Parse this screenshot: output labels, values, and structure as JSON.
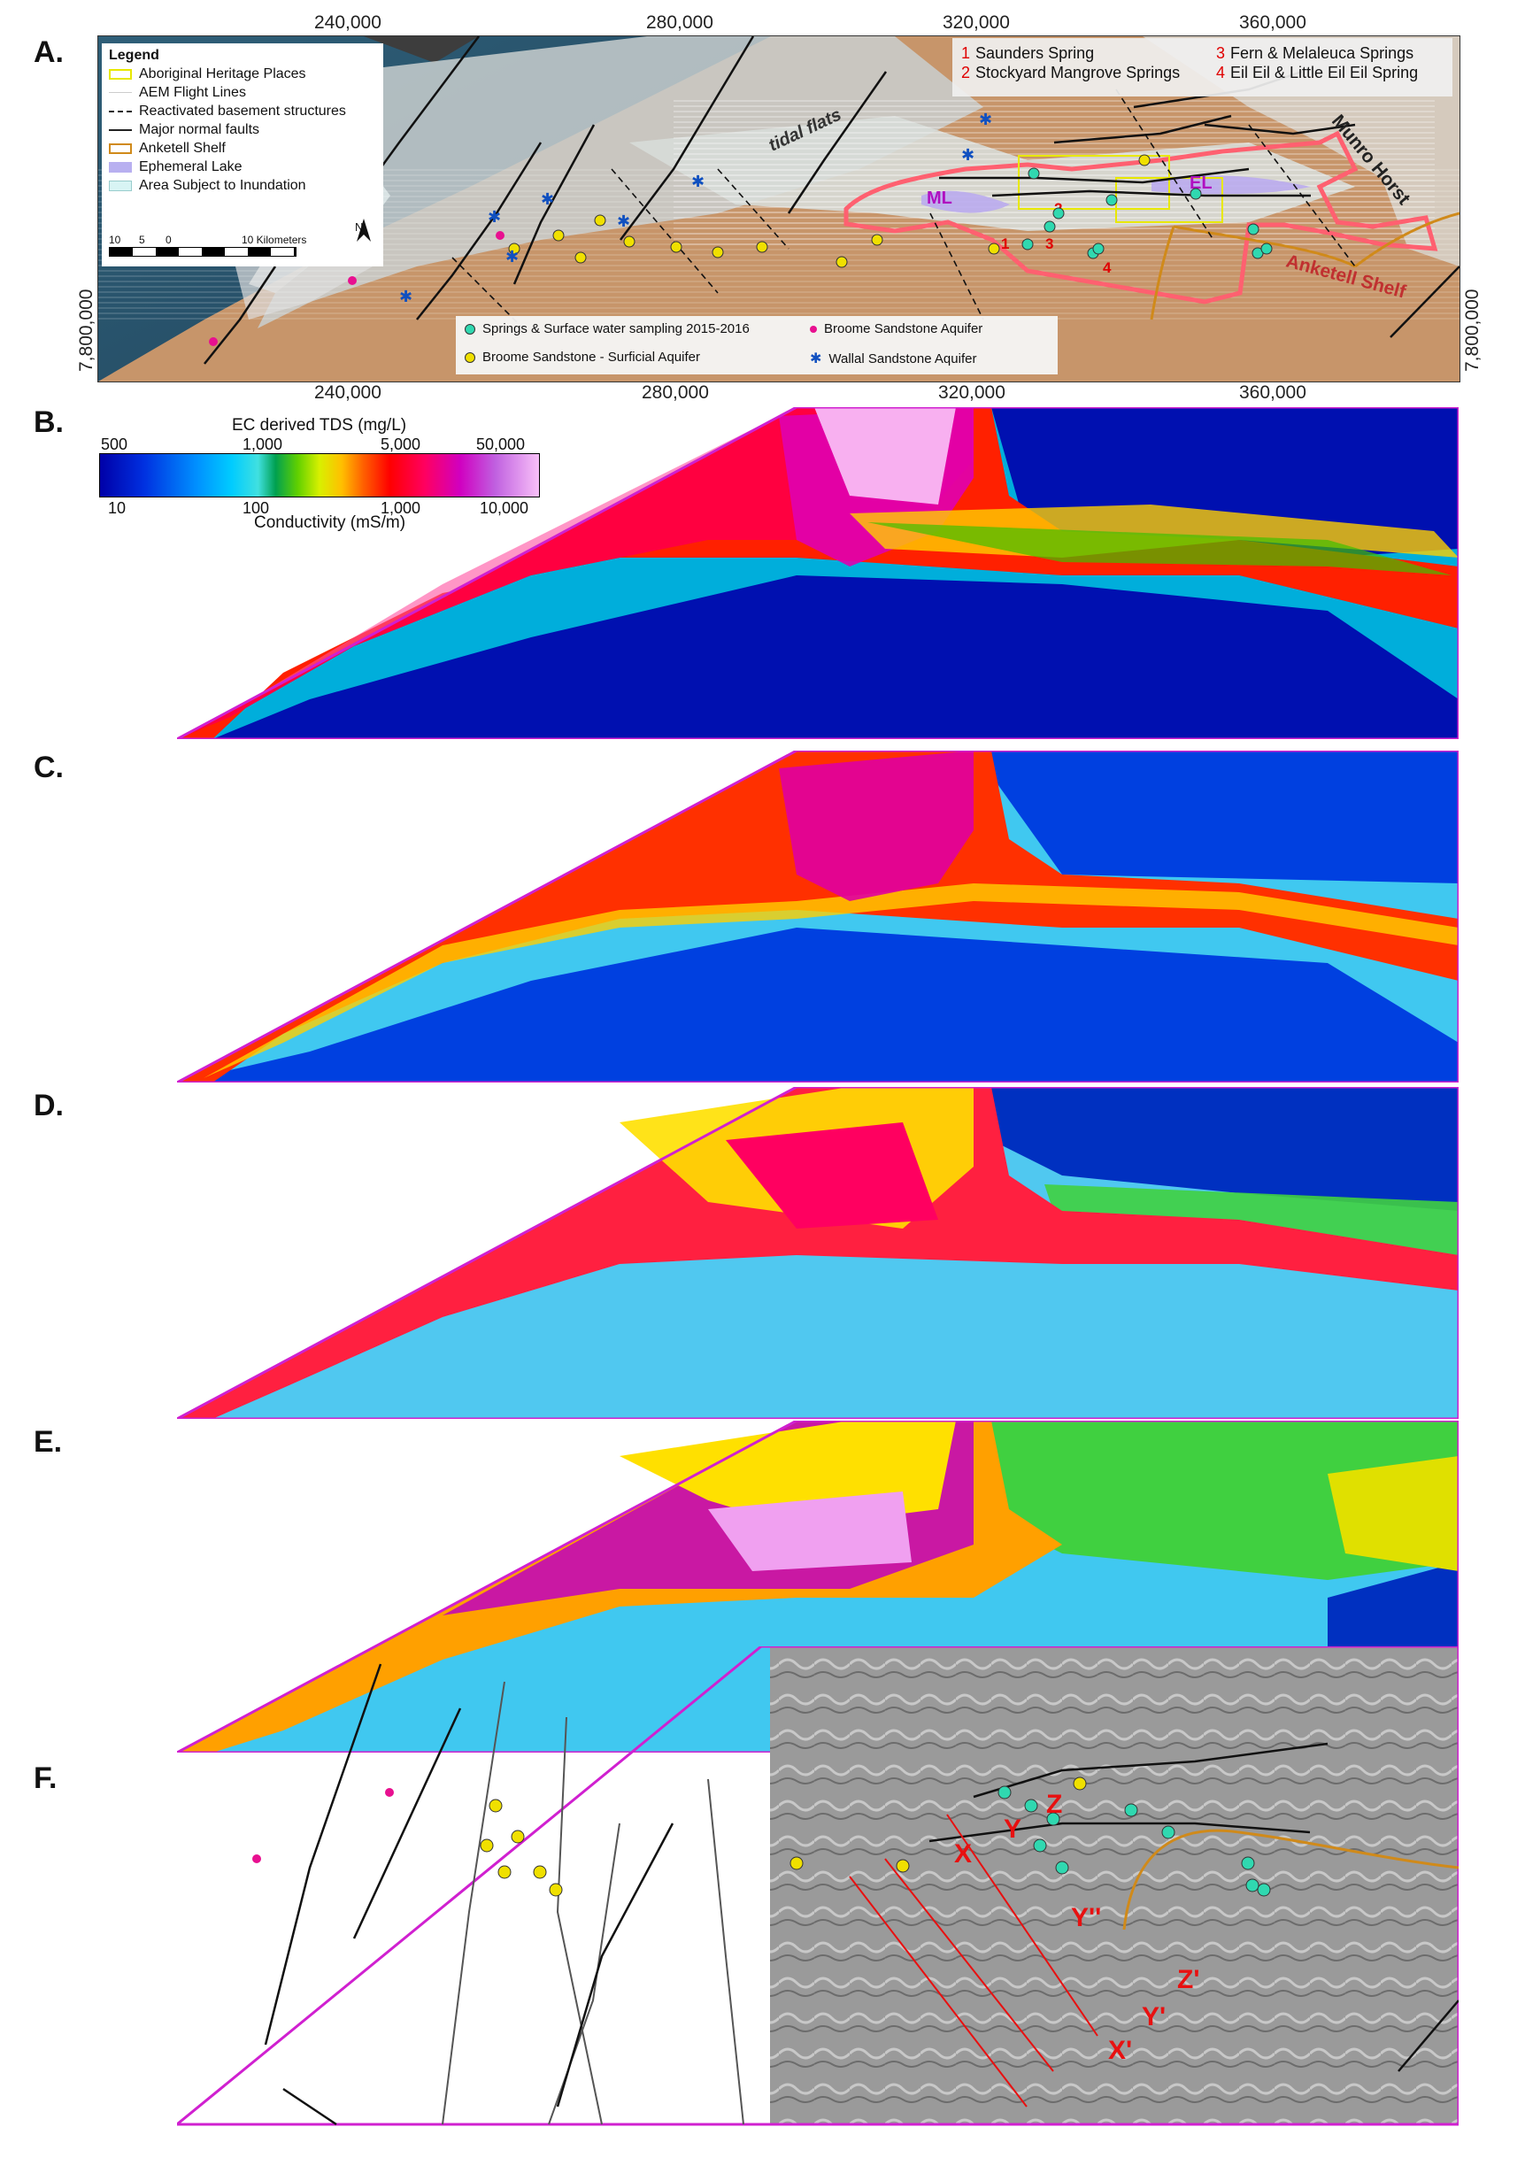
{
  "panels": {
    "a": "A.",
    "b": "B.",
    "c": "C.",
    "d": "D.",
    "e": "E.",
    "f": "F."
  },
  "map_a": {
    "coords_top": [
      "240,000",
      "280,000",
      "320,000",
      "360,000"
    ],
    "coords_bottom": [
      "240,000",
      "280,000",
      "320,000",
      "360,000"
    ],
    "coord_left": "7,800,000",
    "coord_right": "7,800,000",
    "legend": {
      "title": "Legend",
      "items": [
        {
          "label": "Aboriginal Heritage Places",
          "color": "#e8e800"
        },
        {
          "label": "AEM Flight Lines",
          "color": "#ffffff"
        },
        {
          "label": "Reactivated basement structures",
          "color": "#222222"
        },
        {
          "label": "Major normal faults",
          "color": "#222222"
        },
        {
          "label": "Anketell Shelf",
          "color": "#d08a1a"
        },
        {
          "label": "Ephemeral Lake",
          "color": "#b8b0f0"
        },
        {
          "label": "Area Subject to Inundation",
          "color": "#d8f4f4"
        }
      ],
      "north": "N",
      "scale_labels": [
        "10",
        "5",
        "0",
        "10 Kilometers"
      ]
    },
    "springs": [
      {
        "num": "1",
        "name": "Saunders Spring"
      },
      {
        "num": "2",
        "name": "Stockyard Mangrove Springs"
      },
      {
        "num": "3",
        "name": "Fern & Melaleuca Springs"
      },
      {
        "num": "4",
        "name": "Eil Eil & Little Eil Eil Spring"
      }
    ],
    "sampling": {
      "springs": "Springs & Surface water sampling 2015-2016",
      "broome": "Broome Sandstone Aquifer",
      "surficial": "Broome Sandstone - Surficial Aquifer",
      "wallal": "Wallal Sandstone Aquifer"
    },
    "labels": {
      "tidal_flats": "tidal flats",
      "munro_horst": "Munro Horst",
      "anketell_shelf": "Anketell Shelf",
      "ml": "ML",
      "el": "EL",
      "n1": "1",
      "n2": "2",
      "n3": "3",
      "n4": "4"
    },
    "colors": {
      "spring": "#30d8b0",
      "surficial": "#f0e000",
      "broome": "#e81090",
      "wallal": "#1050c0",
      "boundary_pink": "#ff6070",
      "lake": "#b8a8f0",
      "anketell": "#d08a1a"
    }
  },
  "colorbar": {
    "title": "EC derived TDS (mg/L)",
    "top_ticks": [
      "500",
      "1,000",
      "5,000",
      "50,000"
    ],
    "bottom_ticks": [
      "10",
      "100",
      "1,000",
      "10,000"
    ],
    "axis_label": "Conductivity (mS/m)"
  },
  "panel_f": {
    "labels": [
      "X",
      "Y",
      "Z",
      "Y''",
      "Z'",
      "Y'",
      "X'"
    ]
  }
}
